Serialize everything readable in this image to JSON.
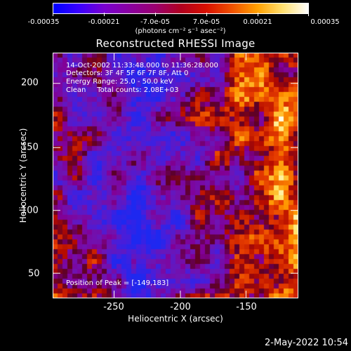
{
  "colorbar": {
    "colors": [
      "#0000ff",
      "#3a00ff",
      "#7a00d0",
      "#8a00a0",
      "#9a0070",
      "#b00020",
      "#d81000",
      "#f05000",
      "#ffa000",
      "#ffe070",
      "#ffffff"
    ],
    "ticks": [
      "-0.00035",
      "-0.00021",
      "-7.0e-05",
      "7.0e-05",
      "0.00021",
      "0.00035"
    ],
    "units": "(photons cm⁻² s⁻¹ asec⁻²)"
  },
  "title": "Reconstructed RHESSI Image",
  "info": {
    "time_range": "14-Oct-2002 11:33:48.000 to 11:36:28.000",
    "detectors": "Detectors: 3F 4F 5F 6F 7F 8F, Att 0",
    "energy": "Energy Range: 25.0 - 50.0 keV",
    "clean": "Clean     Total counts: 2.08E+03",
    "peak": "Position of Peak = [-149,183]"
  },
  "axes": {
    "x_label": "Heliocentric X (arcsec)",
    "y_label": "Heliocentric Y (arcsec)",
    "x_ticks": [
      "-250",
      "-200",
      "-150"
    ],
    "y_ticks": [
      "200",
      "150",
      "100",
      "50"
    ]
  },
  "timestamp": "2-May-2022 10:54"
}
